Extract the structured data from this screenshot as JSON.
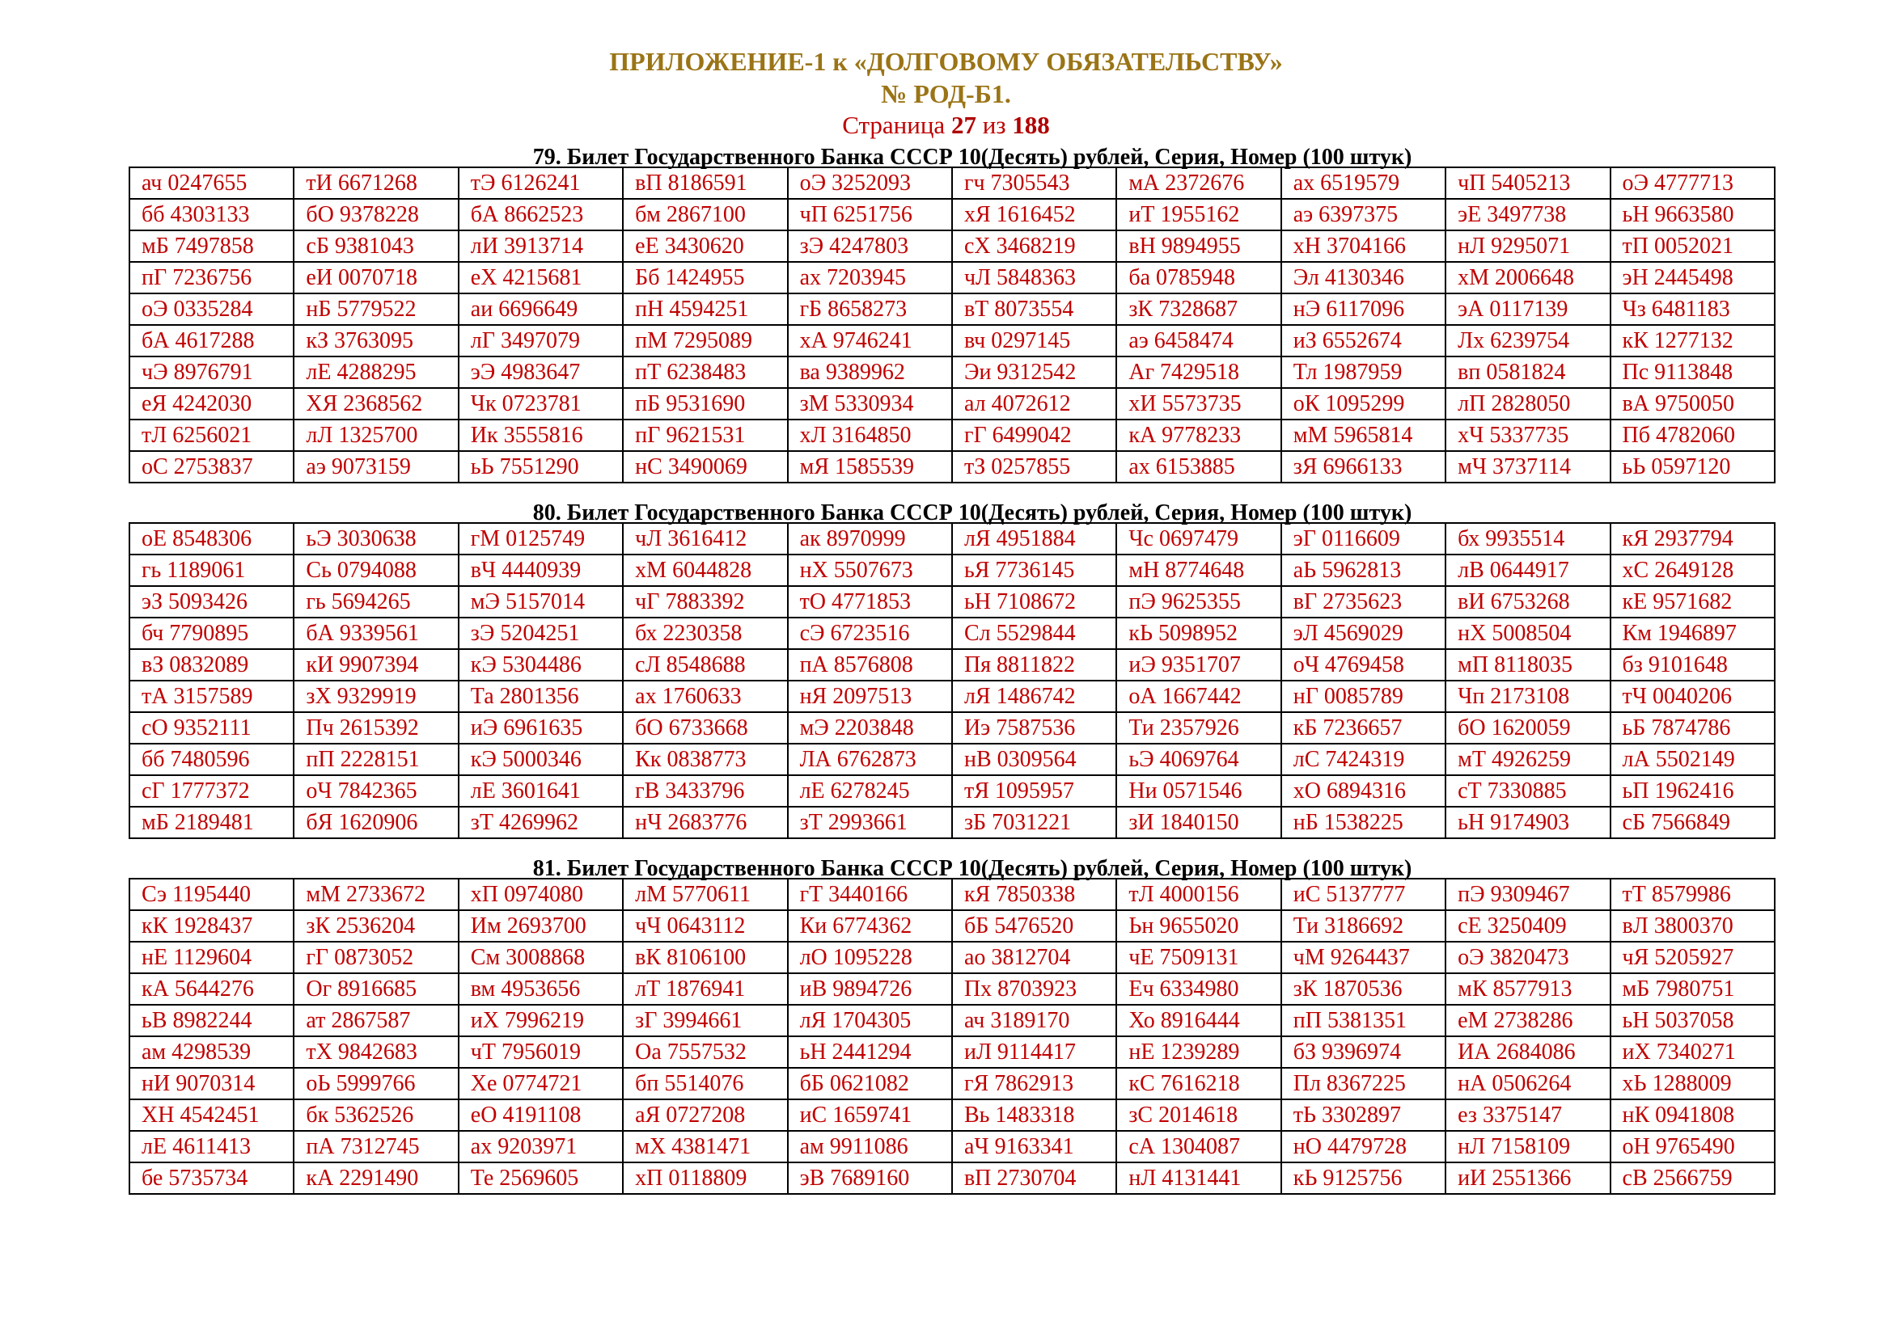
{
  "header": {
    "title": "ПРИЛОЖЕНИЕ-1 к «ДОЛГОВОМУ ОБЯЗАТЕЛЬСТВУ»",
    "doc_number": "№ РОД-Б1.",
    "page_prefix": "Страница ",
    "page_current": "27",
    "page_mid": " из ",
    "page_total": "188"
  },
  "colors": {
    "title": "#9a7416",
    "cell_text": "#c00000",
    "page_text": "#c00000"
  },
  "sections": [
    {
      "title": "79. Билет Государственного Банка СССР 10(Десять) рублей, Серия, Номер (100 штук)",
      "rows": [
        [
          "ач 0247655",
          "тИ 6671268",
          "тЭ 6126241",
          "вП 8186591",
          "оЭ 3252093",
          "гч 7305543",
          "мА 2372676",
          "ах 6519579",
          "чП 5405213",
          "оЭ 4777713"
        ],
        [
          "бб 4303133",
          "бО 9378228",
          "бА 8662523",
          "бм 2867100",
          "чП 6251756",
          "хЯ 1616452",
          "иТ 1955162",
          "аэ 6397375",
          "эЕ 3497738",
          "ьН 9663580"
        ],
        [
          "мБ 7497858",
          "сБ 9381043",
          "лИ 3913714",
          "еЕ 3430620",
          "зЭ 4247803",
          "сХ 3468219",
          "вН 9894955",
          "хН 3704166",
          "нЛ 9295071",
          "тП 0052021"
        ],
        [
          "пГ 7236756",
          "еИ 0070718",
          "еХ 4215681",
          "Бб 1424955",
          "ах 7203945",
          "чЛ 5848363",
          "ба 0785948",
          "Эл 4130346",
          "хМ 2006648",
          "эН 2445498"
        ],
        [
          "оЭ 0335284",
          "нБ 5779522",
          "аи 6696649",
          "пН 4594251",
          "гБ 8658273",
          "вТ 8073554",
          "зК 7328687",
          "нЭ 6117096",
          "эА 0117139",
          "Чз 6481183"
        ],
        [
          "бА 4617288",
          "кЗ 3763095",
          "лГ 3497079",
          "пМ 7295089",
          "хА 9746241",
          "вч 0297145",
          "аэ 6458474",
          "иЗ 6552674",
          "Лх 6239754",
          "кК 1277132"
        ],
        [
          "чЭ 8976791",
          "лЕ 4288295",
          "эЭ 4983647",
          "пТ 6238483",
          "ва 9389962",
          "Эи 9312542",
          "Аг 7429518",
          "Тл 1987959",
          "вп 0581824",
          "Пс 9113848"
        ],
        [
          "еЯ 4242030",
          "ХЯ 2368562",
          "Чк 0723781",
          "пБ 9531690",
          "зМ 5330934",
          "ал 4072612",
          "хИ 5573735",
          "оК 1095299",
          "лП 2828050",
          "вА 9750050"
        ],
        [
          "тЛ 6256021",
          "лЛ 1325700",
          "Ик 3555816",
          "пГ 9621531",
          "хЛ 3164850",
          "гГ 6499042",
          "кА 9778233",
          "мМ 5965814",
          "хЧ 5337735",
          "Пб 4782060"
        ],
        [
          "оС 2753837",
          "аэ 9073159",
          "ьЬ 7551290",
          "нС 3490069",
          "мЯ 1585539",
          "тЗ 0257855",
          "ах 6153885",
          "зЯ 6966133",
          "мЧ 3737114",
          "ьЬ 0597120"
        ]
      ]
    },
    {
      "title": "80. Билет Государственного Банка СССР 10(Десять) рублей, Серия, Номер (100 штук)",
      "rows": [
        [
          "оЕ 8548306",
          "ьЭ 3030638",
          "гМ 0125749",
          "чЛ 3616412",
          "ак 8970999",
          "лЯ 4951884",
          "Чс 0697479",
          "эГ 0116609",
          "бх 9935514",
          "кЯ 2937794"
        ],
        [
          "гь 1189061",
          "Сь 0794088",
          "вЧ 4440939",
          "хМ 6044828",
          "нХ 5507673",
          "ьЯ 7736145",
          "мН 8774648",
          "аЬ 5962813",
          "лВ 0644917",
          "хС 2649128"
        ],
        [
          "эЗ 5093426",
          "гь 5694265",
          "мЭ 5157014",
          "чГ 7883392",
          "тО 4771853",
          "ьН 7108672",
          "пЭ 9625355",
          "вГ 2735623",
          "вИ 6753268",
          "кЕ 9571682"
        ],
        [
          "бч 7790895",
          "бА 9339561",
          "зЭ 5204251",
          "бх 2230358",
          "сЭ 6723516",
          "Сл 5529844",
          "кЬ 5098952",
          "эЛ 4569029",
          "нХ 5008504",
          "Км 1946897"
        ],
        [
          "вЗ 0832089",
          "кИ 9907394",
          "кЭ 5304486",
          "сЛ 8548688",
          "пА 8576808",
          "Пя 8811822",
          "иЭ 9351707",
          "оЧ 4769458",
          "мП 8118035",
          "бз 9101648"
        ],
        [
          "тА 3157589",
          "зХ 9329919",
          "Та 2801356",
          "ах 1760633",
          "нЯ 2097513",
          "лЯ 1486742",
          "оА 1667442",
          "нГ 0085789",
          "Чп 2173108",
          "тЧ 0040206"
        ],
        [
          "сО 9352111",
          "Пч 2615392",
          "иЭ 6961635",
          "бО 6733668",
          "мЭ 2203848",
          "Иэ 7587536",
          "Ти 2357926",
          "кБ 7236657",
          "бО 1620059",
          "ьБ 7874786"
        ],
        [
          "бб 7480596",
          "пП 2228151",
          "кЭ 5000346",
          "Кк 0838773",
          "ЛА 6762873",
          "нВ 0309564",
          "ьЭ 4069764",
          "лС 7424319",
          "мТ 4926259",
          "лА 5502149"
        ],
        [
          "сГ 1777372",
          "оЧ 7842365",
          "лЕ 3601641",
          "гВ 3433796",
          "лЕ 6278245",
          "тЯ 1095957",
          "Ни 0571546",
          "хО 6894316",
          "сТ 7330885",
          "ьП 1962416"
        ],
        [
          "мБ 2189481",
          "бЯ 1620906",
          "зТ 4269962",
          "нЧ 2683776",
          "зТ 2993661",
          "зБ 7031221",
          "зИ 1840150",
          "нБ 1538225",
          "ьН 9174903",
          "сБ 7566849"
        ]
      ]
    },
    {
      "title": "81. Билет Государственного Банка СССР 10(Десять) рублей, Серия, Номер (100 штук)",
      "rows": [
        [
          "Сэ 1195440",
          "мМ 2733672",
          "хП 0974080",
          "лМ 5770611",
          "гТ 3440166",
          "кЯ 7850338",
          "тЛ 4000156",
          "иС 5137777",
          "пЭ 9309467",
          "тТ 8579986"
        ],
        [
          "кК 1928437",
          "зК 2536204",
          "Им 2693700",
          "чЧ 0643112",
          "Ки 6774362",
          "бБ 5476520",
          "Ьн 9655020",
          "Ти 3186692",
          "сЕ 3250409",
          "вЛ 3800370"
        ],
        [
          "нЕ 1129604",
          "гГ 0873052",
          "См 3008868",
          "вК 8106100",
          "лО 1095228",
          "ао 3812704",
          "чЕ 7509131",
          "чМ 9264437",
          "оЭ 3820473",
          "чЯ 5205927"
        ],
        [
          "кА 5644276",
          "Ог 8916685",
          "вм 4953656",
          "лТ 1876941",
          "иВ 9894726",
          "Пх 8703923",
          "Еч 6334980",
          "зК 1870536",
          "мК 8577913",
          "мБ 7980751"
        ],
        [
          "ьВ 8982244",
          "ат 2867587",
          "иХ 7996219",
          "зГ 3994661",
          "лЯ 1704305",
          "ач 3189170",
          "Хо 8916444",
          "пП 5381351",
          "еМ 2738286",
          "ьН 5037058"
        ],
        [
          "ам 4298539",
          "тХ 9842683",
          "чТ 7956019",
          "Оа 7557532",
          "ьН 2441294",
          "иЛ 9114417",
          "нЕ 1239289",
          "бЗ 9396974",
          "ИА 2684086",
          "иХ 7340271"
        ],
        [
          "нИ 9070314",
          "оЬ 5999766",
          "Хе 0774721",
          "бп 5514076",
          "бБ 0621082",
          "гЯ 7862913",
          "кС 7616218",
          "Пл 8367225",
          "нА 0506264",
          "хЬ 1288009"
        ],
        [
          "ХН 4542451",
          "бк 5362526",
          "еО 4191108",
          "аЯ 0727208",
          "иС 1659741",
          "Вь 1483318",
          "зС 2014618",
          "тЬ 3302897",
          "ез 3375147",
          "нК 0941808"
        ],
        [
          "лЕ 4611413",
          "пА 7312745",
          "ах 9203971",
          "мХ 4381471",
          "ам 9911086",
          "аЧ 9163341",
          "сА 1304087",
          "нО 4479728",
          "нЛ 7158109",
          "оН 9765490"
        ],
        [
          "бе 5735734",
          "кА 2291490",
          "Те 2569605",
          "хП 0118809",
          "эВ 7689160",
          "вП 2730704",
          "нЛ 4131441",
          "кЬ 9125756",
          "иИ 2551366",
          "сВ 2566759"
        ]
      ]
    }
  ]
}
